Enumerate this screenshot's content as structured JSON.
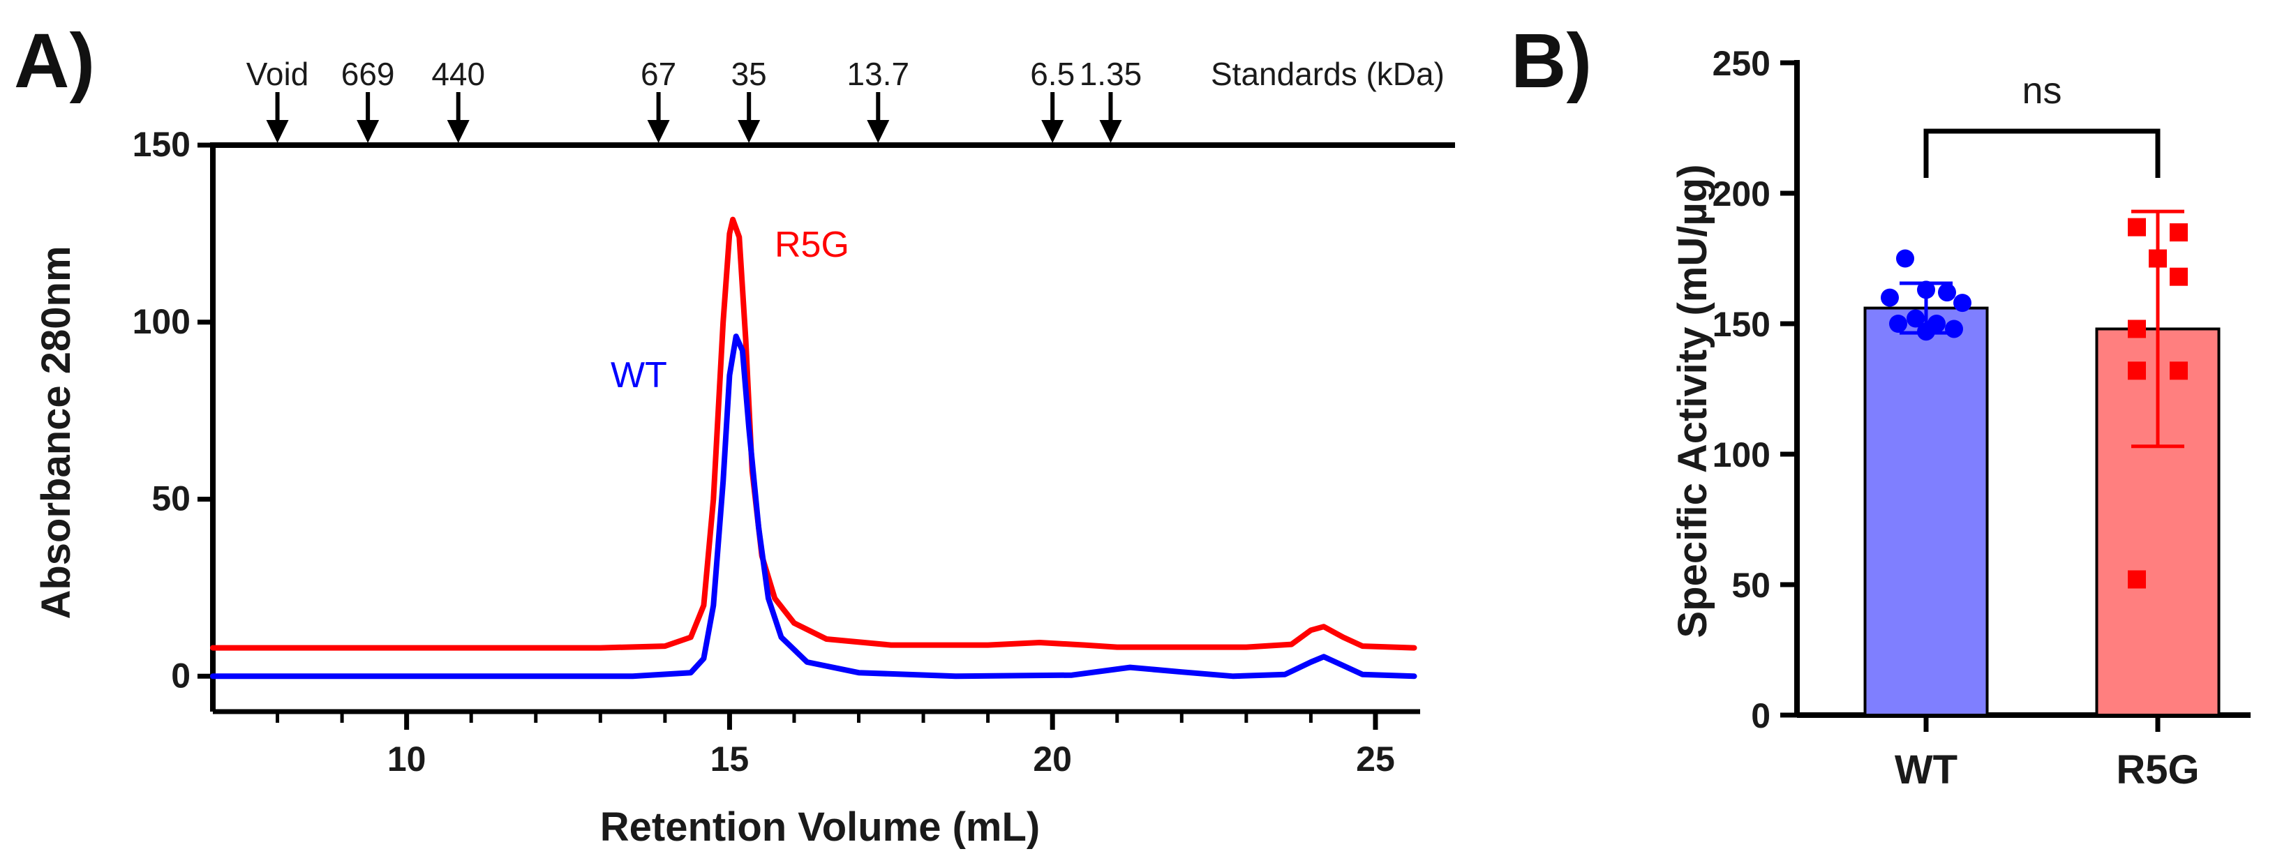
{
  "figure": {
    "panel_a_label": "A)",
    "panel_b_label": "B)"
  },
  "chart_data": [
    {
      "id": "A",
      "type": "line",
      "title": "",
      "xlabel": "Retention Volume (mL)",
      "ylabel": "Absorbance 280nm",
      "xlim": [
        7,
        25.8
      ],
      "ylim": [
        -10,
        150
      ],
      "xticks_major": [
        10,
        15,
        20,
        25
      ],
      "xticks_minor": [
        8,
        9,
        11,
        12,
        13,
        14,
        16,
        17,
        18,
        19,
        21,
        22,
        23,
        24
      ],
      "yticks": [
        0,
        50,
        100,
        150
      ],
      "top_axis_label": "Standards (kDa)",
      "standards": [
        {
          "label": "Void",
          "x": 8.0
        },
        {
          "label": "669",
          "x": 9.4
        },
        {
          "label": "440",
          "x": 10.8
        },
        {
          "label": "67",
          "x": 13.9
        },
        {
          "label": "35",
          "x": 15.3
        },
        {
          "label": "13.7",
          "x": 17.3
        },
        {
          "label": "6.5",
          "x": 20.0
        },
        {
          "label": "1.35",
          "x": 20.9
        }
      ],
      "series": [
        {
          "name": "R5G",
          "color": "#ff0000",
          "points": [
            [
              7,
              8
            ],
            [
              10,
              8
            ],
            [
              13,
              8
            ],
            [
              14,
              8.5
            ],
            [
              14.4,
              11
            ],
            [
              14.6,
              20
            ],
            [
              14.75,
              50
            ],
            [
              14.9,
              100
            ],
            [
              15.0,
              125
            ],
            [
              15.05,
              129
            ],
            [
              15.15,
              124
            ],
            [
              15.25,
              95
            ],
            [
              15.35,
              58
            ],
            [
              15.5,
              34
            ],
            [
              15.7,
              22
            ],
            [
              16.0,
              15
            ],
            [
              16.5,
              10.5
            ],
            [
              17.5,
              8.8
            ],
            [
              19,
              8.8
            ],
            [
              19.8,
              9.5
            ],
            [
              20.5,
              8.8
            ],
            [
              21,
              8.2
            ],
            [
              23,
              8.2
            ],
            [
              23.7,
              9
            ],
            [
              24.0,
              13
            ],
            [
              24.2,
              14
            ],
            [
              24.5,
              11
            ],
            [
              24.8,
              8.5
            ],
            [
              25.6,
              8
            ]
          ]
        },
        {
          "name": "WT",
          "color": "#0000ff",
          "points": [
            [
              7,
              0
            ],
            [
              10,
              0
            ],
            [
              12,
              0
            ],
            [
              13.5,
              0
            ],
            [
              14.4,
              1
            ],
            [
              14.6,
              5
            ],
            [
              14.75,
              20
            ],
            [
              14.9,
              55
            ],
            [
              15.0,
              85
            ],
            [
              15.1,
              96
            ],
            [
              15.2,
              92
            ],
            [
              15.3,
              70
            ],
            [
              15.45,
              42
            ],
            [
              15.6,
              22
            ],
            [
              15.8,
              11
            ],
            [
              16.2,
              4
            ],
            [
              17,
              1
            ],
            [
              18.5,
              0
            ],
            [
              20.3,
              0.3
            ],
            [
              21.2,
              2.5
            ],
            [
              22,
              1.2
            ],
            [
              22.8,
              0
            ],
            [
              23.6,
              0.5
            ],
            [
              24.0,
              4
            ],
            [
              24.2,
              5.5
            ],
            [
              24.5,
              3
            ],
            [
              24.8,
              0.5
            ],
            [
              25.6,
              0
            ]
          ]
        }
      ]
    },
    {
      "id": "B",
      "type": "bar",
      "title": "",
      "xlabel": "",
      "ylabel": "Specific Activity (mU/µg)",
      "ylim": [
        0,
        250
      ],
      "yticks": [
        0,
        50,
        100,
        150,
        200,
        250
      ],
      "categories": [
        "WT",
        "R5G"
      ],
      "values": [
        156,
        148
      ],
      "sd": [
        9.5,
        45
      ],
      "bar_colors": [
        "#7f7fff",
        "#ff7f7f"
      ],
      "point_colors": [
        "#0000ff",
        "#ff0000"
      ],
      "points": [
        [
          175,
          163,
          162,
          160,
          158,
          152,
          150,
          150,
          148,
          147
        ],
        [
          187,
          185,
          175,
          168,
          148,
          132,
          132,
          52
        ]
      ],
      "significance": "ns"
    }
  ]
}
